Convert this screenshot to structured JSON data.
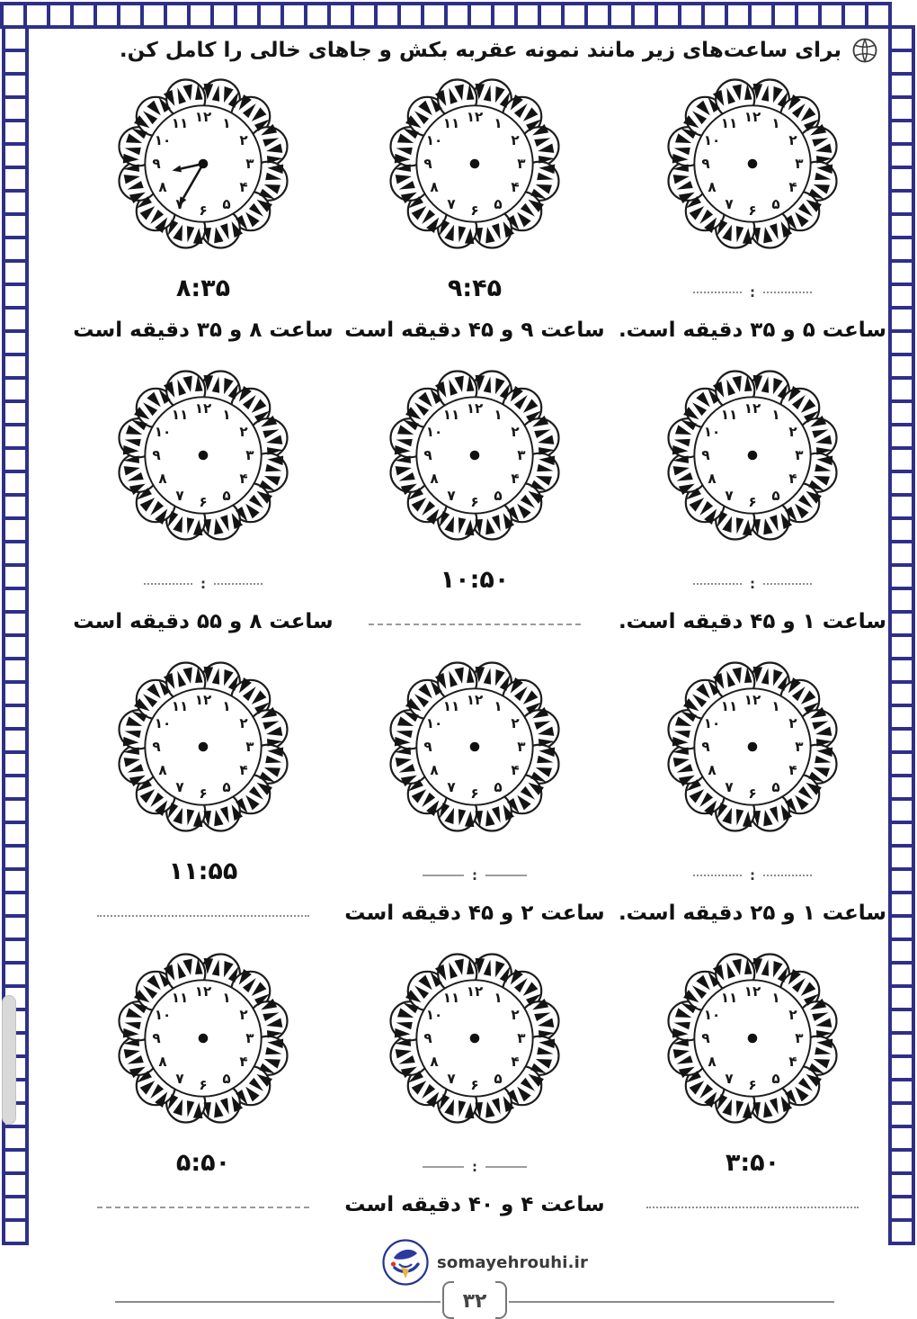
{
  "page": {
    "title": "برای ساعت‌های زیر مانند نمونه عقربه بکش و جاهای خالی را کامل کن.",
    "colors": {
      "border_navy": "#2f2f8a",
      "ink": "#111111",
      "blank_gray": "#8d8d8d",
      "logo_blue": "#2b3a9e",
      "logo_red": "#d03a2e",
      "logo_yellow": "#e8b53a"
    }
  },
  "clock": {
    "numerals": [
      "۱۲",
      "۱",
      "۲",
      "۳",
      "۴",
      "۵",
      "۶",
      "۷",
      "۸",
      "۹",
      "۱۰",
      "۱۱"
    ],
    "example_hands": {
      "hour": 8,
      "minute": 35
    }
  },
  "blanks": {
    "colon": ":"
  },
  "cells": [
    {
      "time": "۸:۳۵",
      "sentence": "ساعت ۸ و ۳۵ دقیقه است",
      "hands": {
        "hour": 8,
        "minute": 35
      }
    },
    {
      "time": "۹:۴۵",
      "sentence": "ساعت ۹ و ۴۵ دقیقه است"
    },
    {
      "time_blank": "dotted",
      "sentence": "ساعت ۵ و ۳۵ دقیقه است."
    },
    {
      "time_blank": "dotted",
      "sentence": "ساعت ۸ و ۵۵ دقیقه است"
    },
    {
      "time": "۱۰:۵۰",
      "sentence_blank": "dash"
    },
    {
      "time_blank": "dotted",
      "sentence": "ساعت ۱ و ۴۵ دقیقه است."
    },
    {
      "time": "۱۱:۵۵",
      "sentence_blank": "dotted"
    },
    {
      "time_blank": "dash",
      "sentence": "ساعت ۲ و ۴۵ دقیقه است"
    },
    {
      "time_blank": "dotted",
      "sentence": "ساعت ۱ و ۲۵ دقیقه است."
    },
    {
      "time": "۵:۵۰",
      "sentence_blank": "dash"
    },
    {
      "time_blank": "dash",
      "sentence": "ساعت ۴ و ۴۰ دقیقه است"
    },
    {
      "time": "۳:۵۰",
      "sentence_blank": "dotted"
    }
  ],
  "footer": {
    "site": "somayehrouhi.ir",
    "page_number": "۳۲"
  }
}
